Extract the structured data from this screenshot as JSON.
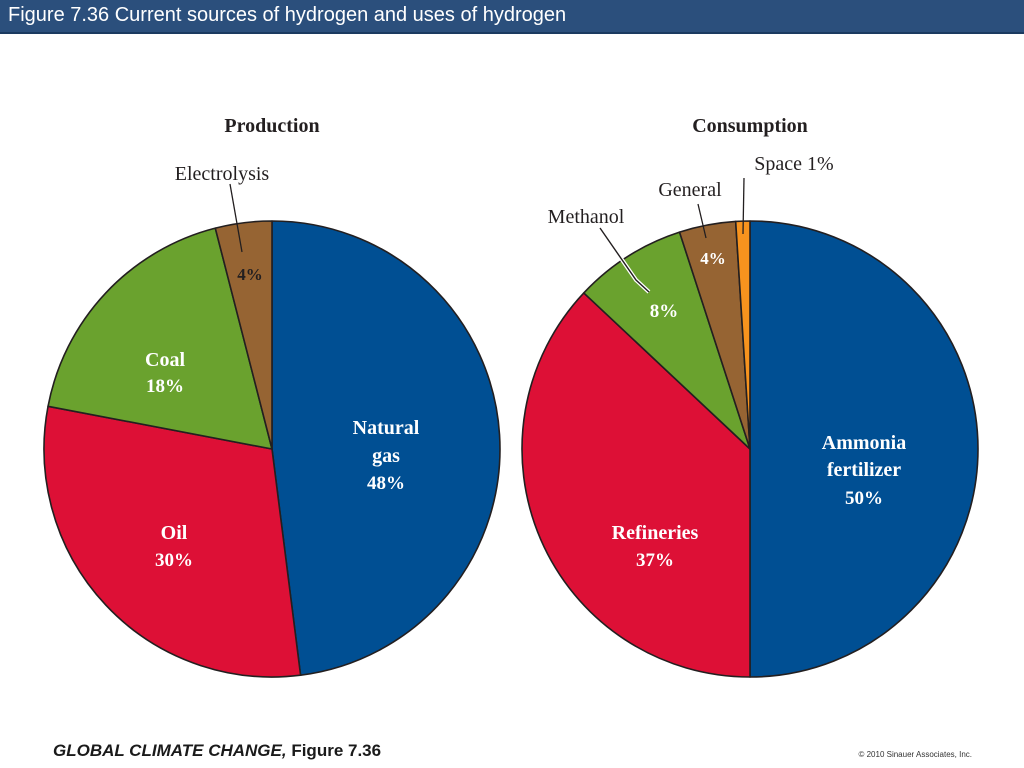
{
  "header": {
    "title": "Figure 7.36  Current sources of hydrogen and uses of hydrogen"
  },
  "footer": {
    "book": "GLOBAL CLIMATE CHANGE,",
    "figure": "Figure 7.36",
    "copyright": "© 2010 Sinauer Associates, Inc."
  },
  "colors": {
    "title_bar": "#2b4f7c",
    "blue": "#004f93",
    "red": "#dd1036",
    "green": "#6aa22e",
    "brown": "#966433",
    "orange": "#f7931e"
  },
  "chart_data": [
    {
      "type": "pie",
      "title": "Production",
      "slices": [
        {
          "label": "Natural gas",
          "value": 48,
          "value_label": "48%",
          "color": "#004f93"
        },
        {
          "label": "Oil",
          "value": 30,
          "value_label": "30%",
          "color": "#dd1036"
        },
        {
          "label": "Coal",
          "value": 18,
          "value_label": "18%",
          "color": "#6aa22e"
        },
        {
          "label": "Electrolysis",
          "value": 4,
          "value_label": "4%",
          "color": "#966433"
        }
      ]
    },
    {
      "type": "pie",
      "title": "Consumption",
      "slices": [
        {
          "label": "Ammonia fertilizer",
          "value": 50,
          "value_label": "50%",
          "color": "#004f93"
        },
        {
          "label": "Refineries",
          "value": 37,
          "value_label": "37%",
          "color": "#dd1036"
        },
        {
          "label": "Methanol",
          "value": 8,
          "value_label": "8%",
          "color": "#6aa22e"
        },
        {
          "label": "General",
          "value": 4,
          "value_label": "4%",
          "color": "#966433"
        },
        {
          "label": "Space",
          "value": 1,
          "value_label": "1%",
          "color": "#f7931e"
        }
      ]
    }
  ]
}
